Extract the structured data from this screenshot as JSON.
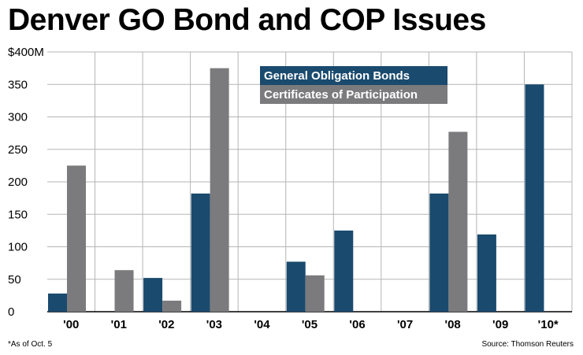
{
  "title": "Denver GO Bond and COP Issues",
  "footnote": "*As of Oct. 5",
  "source": "Source: Thomson Reuters",
  "colors": {
    "go": "#1a4a6e",
    "cop": "#7b7b7d",
    "grid": "#b5b5b5"
  },
  "chart_data": {
    "type": "bar",
    "categories": [
      "'00",
      "'01",
      "'02",
      "'03",
      "'04",
      "'05",
      "'06",
      "'07",
      "'08",
      "'09",
      "'10*"
    ],
    "series": [
      {
        "name": "General Obligation Bonds",
        "values": [
          28,
          0,
          52,
          182,
          0,
          77,
          125,
          0,
          182,
          119,
          350
        ]
      },
      {
        "name": "Certificates of Participation",
        "values": [
          225,
          64,
          17,
          375,
          0,
          56,
          0,
          0,
          277,
          0,
          0
        ]
      }
    ],
    "ylim": [
      0,
      400
    ],
    "yticks": [
      0,
      50,
      100,
      150,
      200,
      250,
      300,
      350,
      400
    ],
    "ytick_labels": [
      "0",
      "50",
      "100",
      "150",
      "200",
      "250",
      "300",
      "350",
      "$400M"
    ],
    "grid": true,
    "legend": "top-right"
  }
}
